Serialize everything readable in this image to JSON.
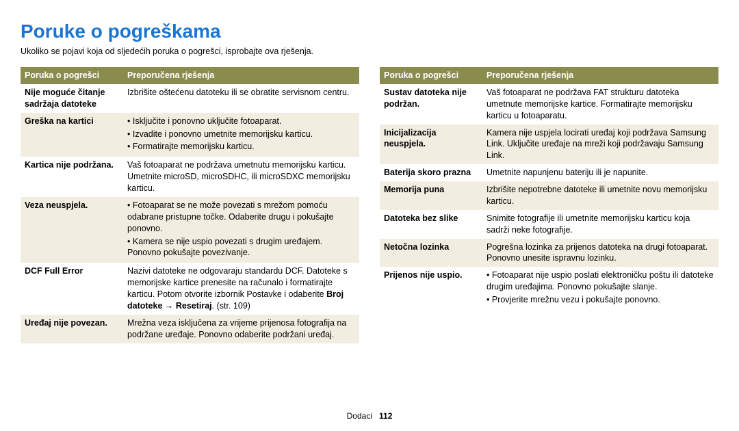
{
  "title": "Poruke o pogreškama",
  "title_color": "#1a75d2",
  "intro": "Ukoliko se pojavi koja od sljedećih poruka o pogrešci, isprobajte ova rješenja.",
  "header_bg": "#8a8c4e",
  "header_color": "#ffffff",
  "alt_bg": "#f2ede1",
  "columns": {
    "error_header": "Poruka o pogrešci",
    "solution_header": "Preporučena rješenja"
  },
  "left_table": [
    {
      "alt": false,
      "label": "Nije moguće čitanje sadržaja datoteke",
      "text": "Izbrišite oštećenu datoteku ili se obratite servisnom centru."
    },
    {
      "alt": true,
      "label": "Greška na kartici",
      "bullets": [
        "Isključite i ponovno uključite fotoaparat.",
        "Izvadite i ponovno umetnite memorijsku karticu.",
        "Formatirajte memorijsku karticu."
      ]
    },
    {
      "alt": false,
      "label": "Kartica nije podržana.",
      "text": "Vaš fotoaparat ne podržava umetnutu memorijsku karticu. Umetnite microSD, microSDHC, ili microSDXC memorijsku karticu."
    },
    {
      "alt": true,
      "label": "Veza neuspjela.",
      "bullets": [
        "Fotoaparat se ne može povezati s mrežom pomoću odabrane pristupne točke. Odaberite drugu i pokušajte ponovno.",
        "Kamera se nije uspio povezati s drugim uređajem. Ponovno pokušajte povezivanje."
      ]
    },
    {
      "alt": false,
      "label": "DCF Full Error",
      "text_pre": "Nazivi datoteke ne odgovaraju standardu DCF. Datoteke s memorijske kartice prenesite na računalo i formatirajte karticu. Potom otvorite izbornik Postavke i odaberite ",
      "bold": "Broj datoteke → Resetiraj",
      "text_post": ". (str. 109)"
    },
    {
      "alt": true,
      "label": "Uređaj nije povezan.",
      "text": "Mrežna veza isključena za vrijeme prijenosa fotografija na podržane uređaje. Ponovno odaberite podržani uređaj."
    }
  ],
  "right_table": [
    {
      "alt": false,
      "label": "Sustav datoteka nije podržan.",
      "text": "Vaš fotoaparat ne podržava FAT strukturu datoteka umetnute memorijske kartice. Formatirajte memorijsku karticu u fotoaparatu."
    },
    {
      "alt": true,
      "label": "Inicijalizacija neuspjela.",
      "text": "Kamera nije uspjela locirati uređaj koji podržava Samsung Link. Uključite uređaje na mreži koji podržavaju Samsung Link."
    },
    {
      "alt": false,
      "label": "Baterija skoro prazna",
      "text": "Umetnite napunjenu bateriju ili je napunite."
    },
    {
      "alt": true,
      "label": "Memorija puna",
      "text": "Izbrišite nepotrebne datoteke ili umetnite novu memorijsku karticu."
    },
    {
      "alt": false,
      "label": "Datoteka bez slike",
      "text": "Snimite fotografije ili umetnite memorijsku karticu koja sadrži neke fotografije."
    },
    {
      "alt": true,
      "label": "Netočna lozinka",
      "text": "Pogrešna lozinka za prijenos datoteka na drugi fotoaparat. Ponovno unesite ispravnu lozinku."
    },
    {
      "alt": false,
      "label": "Prijenos nije uspio.",
      "bullets": [
        "Fotoaparat nije uspio poslati elektroničku poštu ili datoteke drugim uređajima. Ponovno pokušajte slanje.",
        "Provjerite mrežnu vezu i pokušajte ponovno."
      ]
    }
  ],
  "footer": {
    "label": "Dodaci",
    "page": "112"
  }
}
